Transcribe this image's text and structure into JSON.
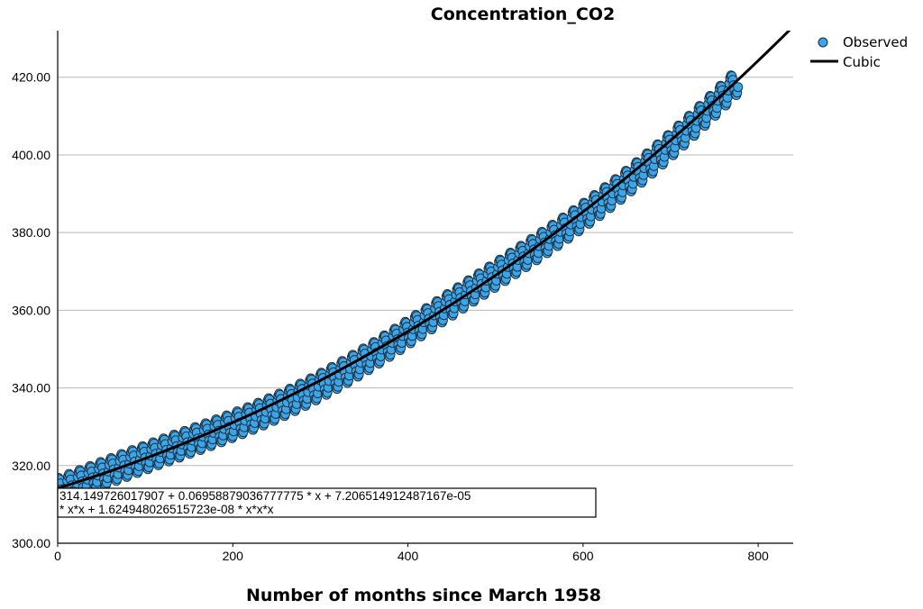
{
  "chart_data": {
    "type": "scatter",
    "title": "Concentration_CO2",
    "xlabel": "Number of months since March 1958",
    "ylabel": "",
    "xlim": [
      0,
      840
    ],
    "ylim": [
      300,
      432
    ],
    "xticks": [
      0,
      200,
      400,
      600,
      800
    ],
    "xtick_labels": [
      "0",
      "200",
      "400",
      "600",
      "800"
    ],
    "yticks": [
      300,
      320,
      340,
      360,
      380,
      400,
      420
    ],
    "ytick_labels": [
      "300.00",
      "320.00",
      "340.00",
      "360.00",
      "380.00",
      "400.00",
      "420.00"
    ],
    "grid": "horizontal",
    "legend": {
      "position": "top-right",
      "entries": [
        "Observed",
        "Cubic"
      ]
    },
    "colors": {
      "observed_fill": "#3ba5e8",
      "observed_edge": "#1b2b3a",
      "fit_line": "#000000",
      "grid": "#b8b8b8"
    },
    "series": [
      {
        "name": "Observed",
        "kind": "scatter",
        "x_start": 0,
        "x_end": 777,
        "x_step": 1,
        "seasonal_amplitude": 3.2
      },
      {
        "name": "Cubic",
        "kind": "line",
        "x_start": 0,
        "x_end": 840,
        "coefficients": [
          314.149726017907,
          0.06958879036777775,
          7.206514912487167e-05,
          1.624948026515723e-08
        ]
      }
    ],
    "annotation": {
      "line1": "314.149726017907 + 0.06958879036777775 * x + 7.206514912487167e-05",
      "line2": "* x*x + 1.624948026515723e-08 * x*x*x"
    }
  }
}
